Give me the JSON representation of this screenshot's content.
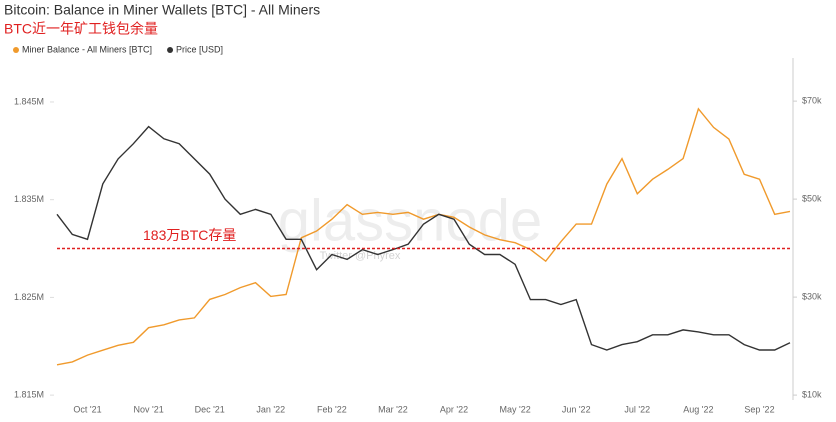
{
  "chart_data": {
    "type": "line",
    "title": "Bitcoin: Balance in Miner Wallets [BTC] - All Miners",
    "subtitle": "BTC近一年矿工钱包余量",
    "watermark": "glassnode",
    "credit": "Twitter @Phyrex",
    "categories": [
      null,
      null,
      "Oct '21",
      null,
      null,
      null,
      "Nov '21",
      null,
      null,
      null,
      "Dec '21",
      null,
      null,
      null,
      "Jan '22",
      null,
      null,
      null,
      "Feb '22",
      null,
      null,
      null,
      "Mar '22",
      null,
      null,
      null,
      "Apr '22",
      null,
      null,
      null,
      "May '22",
      null,
      null,
      null,
      "Jun '22",
      null,
      null,
      null,
      "Jul '22",
      null,
      null,
      null,
      "Aug '22",
      null,
      null,
      null,
      "Sep '22",
      null,
      null
    ],
    "series": [
      {
        "name": "Miner Balance - All Miners [BTC]",
        "color": "#f09a2c",
        "axis": "y",
        "values": [
          1818100,
          1818400,
          1819100,
          1819600,
          1820100,
          1820400,
          1821900,
          1822200,
          1822700,
          1822900,
          1824800,
          1825300,
          1826000,
          1826500,
          1825100,
          1825300,
          1831100,
          1831800,
          1833000,
          1834500,
          1833500,
          1833700,
          1833500,
          1833700,
          1833000,
          1833500,
          1833200,
          1832200,
          1831400,
          1830900,
          1830600,
          1829900,
          1828700,
          1830700,
          1832500,
          1832500,
          1836600,
          1839200,
          1835600,
          1837100,
          1838100,
          1839200,
          1844300,
          1842400,
          1841200,
          1837600,
          1837100,
          1833500,
          1833800
        ]
      },
      {
        "name": "Price [USD]",
        "color": "#333333",
        "axis": "y2",
        "values": [
          46900,
          42800,
          41800,
          53100,
          58200,
          61300,
          64800,
          62300,
          61300,
          58200,
          55100,
          50000,
          46900,
          47900,
          46900,
          41800,
          41800,
          35600,
          38700,
          37700,
          39700,
          38700,
          39700,
          40800,
          44900,
          46900,
          45900,
          40800,
          38700,
          38700,
          36700,
          29500,
          29500,
          28500,
          29500,
          20300,
          19200,
          20300,
          20900,
          22300,
          22300,
          23300,
          22900,
          22300,
          22300,
          20300,
          19200,
          19200,
          20700
        ]
      }
    ],
    "ylim": [
      1814500,
      1849500
    ],
    "yticks": [
      {
        "value": 1815000,
        "label": "1.815M"
      },
      {
        "value": 1825000,
        "label": "1.825M"
      },
      {
        "value": 1835000,
        "label": "1.835M"
      },
      {
        "value": 1845000,
        "label": "1.845M"
      }
    ],
    "y2lim": [
      9000,
      78800
    ],
    "y2ticks": [
      {
        "value": 10000,
        "label": "$10k"
      },
      {
        "value": 30000,
        "label": "$30k"
      },
      {
        "value": 50000,
        "label": "$50k"
      },
      {
        "value": 70000,
        "label": "$70k"
      }
    ],
    "annotations": [
      {
        "text": "183万BTC存量",
        "value": 1830000,
        "color": "#e02020"
      }
    ],
    "legend": "top-left"
  }
}
